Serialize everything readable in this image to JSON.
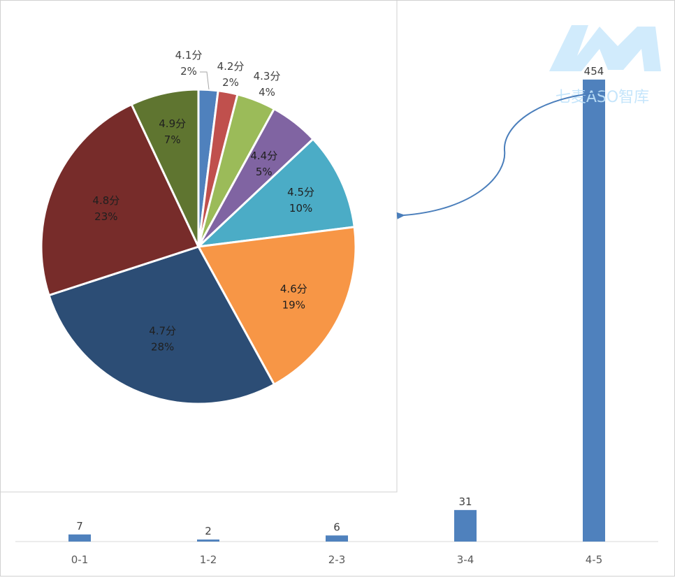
{
  "watermark": {
    "text": "七麦ASO智库",
    "color": "#bfe3fb"
  },
  "chart_data": [
    {
      "type": "bar",
      "categories": [
        "0-1",
        "1-2",
        "2-3",
        "3-4",
        "4-5"
      ],
      "values": [
        7,
        2,
        6,
        31,
        454
      ],
      "value_labels": [
        "7",
        "2",
        "6",
        "31",
        "454"
      ],
      "ylim": [
        0,
        480
      ],
      "grid": false,
      "legend": "none",
      "color": "#4f81bd"
    },
    {
      "type": "pie",
      "labels": [
        "4.1分",
        "4.2分",
        "4.3分",
        "4.4分",
        "4.5分",
        "4.6分",
        "4.7分",
        "4.8分",
        "4.9分"
      ],
      "values": [
        2,
        2,
        4,
        5,
        10,
        19,
        28,
        23,
        7
      ],
      "percent_labels": [
        "2%",
        "2%",
        "4%",
        "5%",
        "10%",
        "19%",
        "28%",
        "23%",
        "7%"
      ],
      "colors": [
        "#4f81bd",
        "#c0504d",
        "#9bbb59",
        "#8064a2",
        "#4bacc6",
        "#f79646",
        "#2c4d75",
        "#772c2a",
        "#5f7530"
      ],
      "legend": "none"
    }
  ]
}
